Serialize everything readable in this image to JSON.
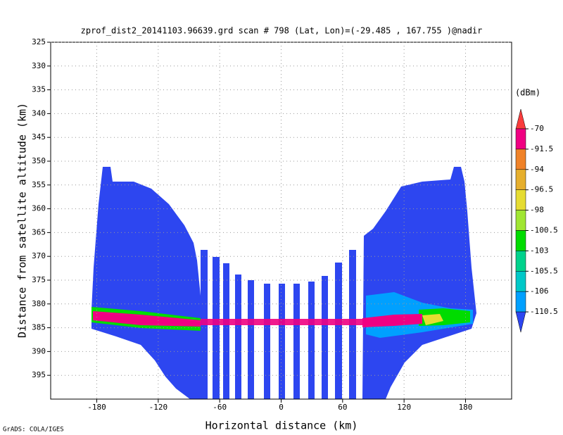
{
  "chart_data": {
    "type": "shaded",
    "title": "zprof_dist2_20141103.96639.grd  scan # 798  (Lat, Lon)=(-29.485 , 167.755 )@nadir",
    "xlabel": "Horizontal distance (km)",
    "ylabel": "Distance from satellite altitude (km)",
    "xlim": [
      -225,
      225
    ],
    "ylim": [
      325,
      400
    ],
    "y_inverted": true,
    "xticks": [
      -180,
      -120,
      -60,
      0,
      60,
      120,
      180
    ],
    "yticks": [
      325,
      330,
      335,
      340,
      345,
      350,
      355,
      360,
      365,
      370,
      375,
      380,
      385,
      390,
      395
    ],
    "grid": true,
    "colorbar": {
      "label": "(dBm)",
      "levels": [
        -70,
        -91.5,
        -94,
        -96.5,
        -98,
        -100.5,
        -103,
        -105.5,
        -106,
        -110.5
      ],
      "colors": [
        "#fa3c3c",
        "#f00082",
        "#f08228",
        "#e6af2d",
        "#e6dc32",
        "#a0e632",
        "#00dc00",
        "#00d28c",
        "#00c8c8",
        "#00a0ff",
        "#2d46f0"
      ]
    },
    "footer": "GrADS: COLA/IGES"
  }
}
